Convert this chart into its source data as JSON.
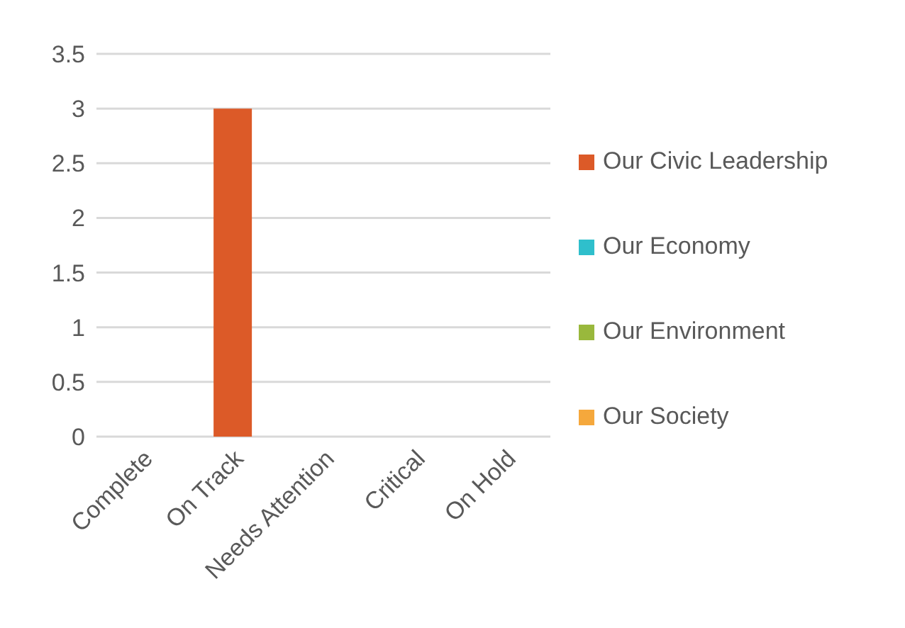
{
  "chart_data": {
    "type": "bar",
    "stacked": true,
    "categories": [
      "Complete",
      "On Track",
      "Needs Attention",
      "Critical",
      "On Hold"
    ],
    "series": [
      {
        "name": "Our Civic Leadership",
        "color": "#dc5a28",
        "values": [
          0,
          3,
          0,
          0,
          0
        ]
      },
      {
        "name": "Our Economy",
        "color": "#2fbfcc",
        "values": [
          0,
          0,
          0,
          0,
          0
        ]
      },
      {
        "name": "Our Environment",
        "color": "#99b83c",
        "values": [
          0,
          0,
          0,
          0,
          0
        ]
      },
      {
        "name": "Our Society",
        "color": "#f5a83c",
        "values": [
          0,
          0,
          0,
          0,
          0
        ]
      }
    ],
    "ylim": [
      0,
      3.5
    ],
    "yticks": [
      0,
      0.5,
      1,
      1.5,
      2,
      2.5,
      3,
      3.5
    ],
    "grid": "y",
    "legend": "right"
  }
}
